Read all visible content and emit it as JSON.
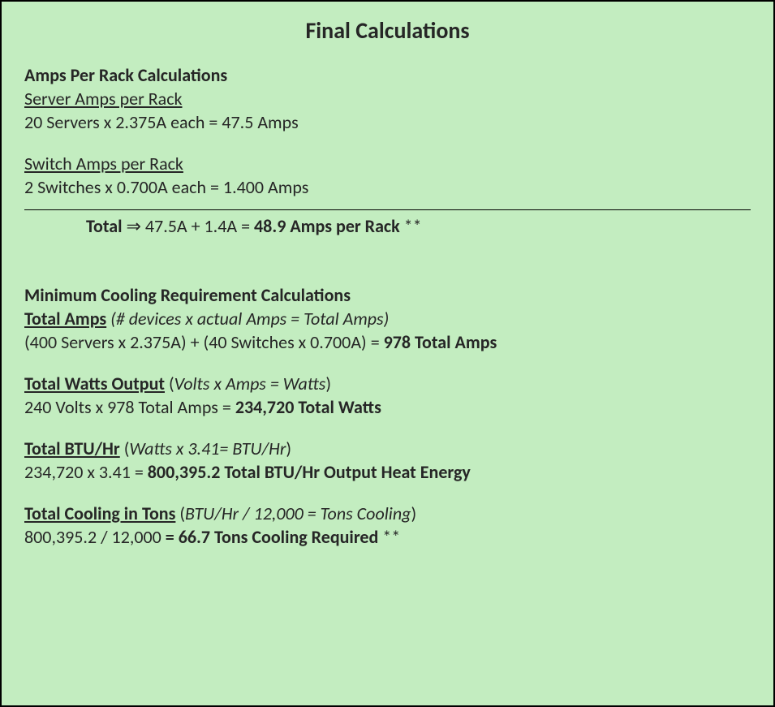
{
  "colors": {
    "background": "#c3edc0",
    "border": "#000000",
    "text": "#262626"
  },
  "typography": {
    "family": "Calibri",
    "title_size_pt": 21,
    "body_size_pt": 16
  },
  "title": "Final Calculations",
  "amps_per_rack": {
    "header": "Amps Per Rack Calculations",
    "server": {
      "label": "Server Amps per Rack",
      "calc": "20 Servers x 2.375A each = 47.5 Amps"
    },
    "switch": {
      "label": "Switch Amps per Rack",
      "calc": "2 Switches x 0.700A each = 1.400 Amps"
    },
    "total": {
      "label": "Total",
      "arrow": "⇒",
      "expr": " 47.5A + 1.4A = ",
      "result": "48.9 Amps per Rack",
      "suffix": " **"
    }
  },
  "cooling": {
    "header": "Minimum Cooling Requirement Calculations",
    "total_amps": {
      "label": "Total Amps",
      "formula": " (# devices x actual Amps = Total Amps)",
      "calc_prefix": "(400 Servers x 2.375A) + (40 Switches x 0.700A) = ",
      "calc_result": "978 Total Amps"
    },
    "total_watts": {
      "label": "Total Watts Output",
      "open_paren": " (",
      "formula": "Volts x Amps = Watts",
      "close_paren": ")",
      "calc_prefix": "240 Volts x 978 Total Amps = ",
      "calc_result": "234,720 Total Watts"
    },
    "total_btu": {
      "label": "Total BTU/Hr",
      "open_paren": " (",
      "formula": "Watts x 3.41= BTU/Hr",
      "close_paren": ")",
      "calc_prefix": "234,720 x 3.41 = ",
      "calc_result": "800,395.2 Total BTU/Hr Output Heat Energy"
    },
    "total_cooling": {
      "label": "Total Cooling in Tons",
      "open_paren": " (",
      "formula": "BTU/Hr / 12,000 = Tons Cooling",
      "close_paren": ")",
      "calc_prefix": "800,395.2 / 12,000 ",
      "calc_result": "= 66.7 Tons Cooling Required",
      "suffix": " **"
    }
  }
}
